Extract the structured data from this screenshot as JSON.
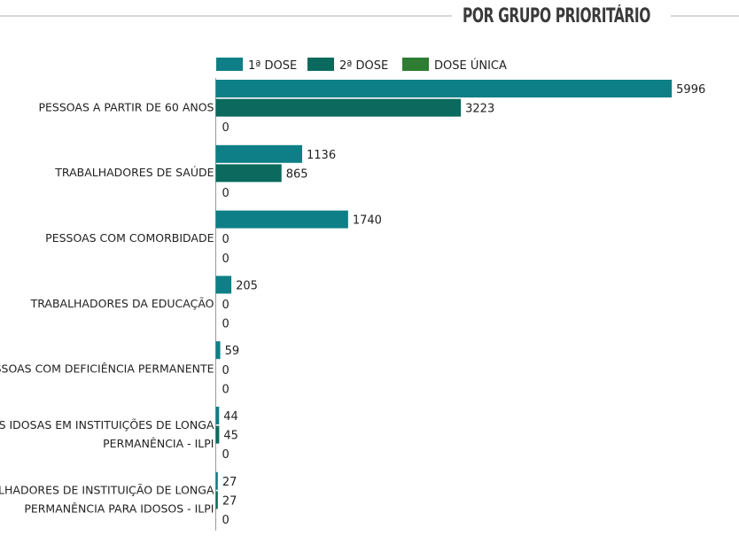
{
  "header": {
    "title": "POR GRUPO PRIORITÁRIO"
  },
  "chart_data": {
    "type": "bar",
    "orientation": "horizontal",
    "title": "POR GRUPO PRIORITÁRIO",
    "categories": [
      [
        "PESSOAS A PARTIR DE 60 ANOS"
      ],
      [
        "TRABALHADORES DE SAÚDE"
      ],
      [
        "PESSOAS COM COMORBIDADE"
      ],
      [
        "TRABALHADORES DA EDUCAÇÃO"
      ],
      [
        "PESSOAS COM DEFICIÊNCIA PERMANENTE"
      ],
      [
        "PESSOAS IDOSAS EM INSTITUIÇÕES DE LONGA",
        "PERMANÊNCIA - ILPI"
      ],
      [
        "TRABALHADORES DE INSTITUIÇÃO DE LONGA",
        "PERMANÊNCIA PARA IDOSOS - ILPI"
      ]
    ],
    "series": [
      {
        "name": "1ª DOSE",
        "color": "#0e7f86",
        "values": [
          5996,
          1136,
          1740,
          205,
          59,
          44,
          27
        ]
      },
      {
        "name": "2ª DOSE",
        "color": "#0b6a5d",
        "values": [
          3223,
          865,
          0,
          0,
          0,
          45,
          27
        ]
      },
      {
        "name": "DOSE ÚNICA",
        "color": "#2e7d32",
        "values": [
          0,
          0,
          0,
          0,
          0,
          0,
          0
        ]
      }
    ],
    "xlim": [
      0,
      6000
    ],
    "legend_position": "top",
    "grid": false,
    "data_labels": true
  }
}
